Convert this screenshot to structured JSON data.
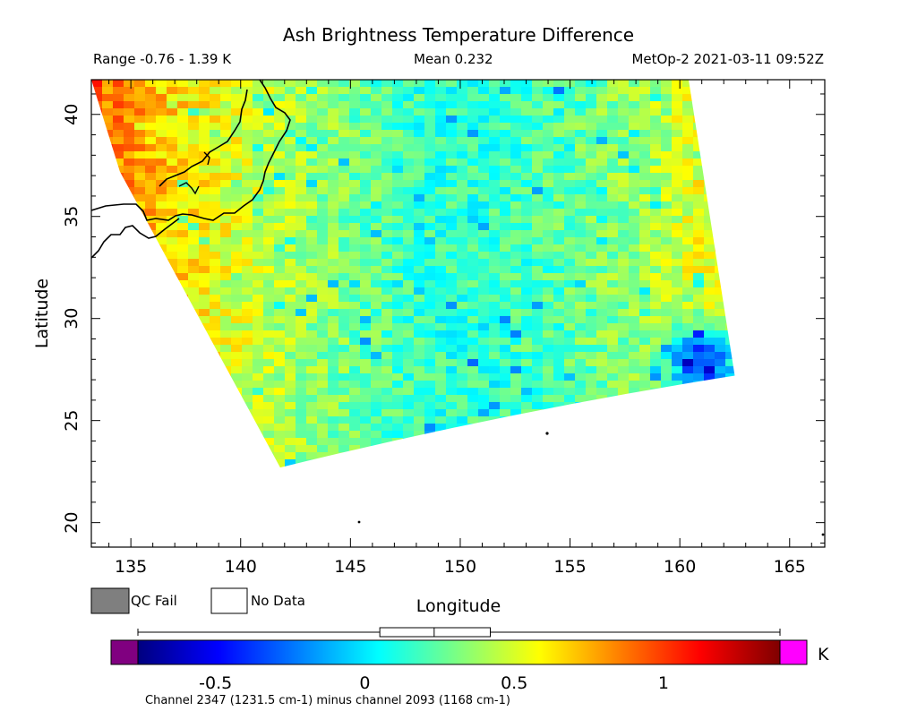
{
  "chart_data": {
    "type": "heatmap",
    "title": "Ash Brightness Temperature Difference",
    "range_text": "Range -0.76 - 1.39 K",
    "mean_text": "Mean 0.232",
    "satellite_text": "MetOp-2 2021-03-11 09:52Z",
    "xlabel": "Longitude",
    "ylabel": "Latitude",
    "xlim": [
      133.2,
      166.6
    ],
    "ylim": [
      18.8,
      41.7
    ],
    "x_ticks": [
      135,
      140,
      145,
      150,
      155,
      160,
      165
    ],
    "y_ticks": [
      20,
      25,
      30,
      35,
      40
    ],
    "swath_corners": [
      {
        "lon": 133.2,
        "lat": 41.7
      },
      {
        "lon": 160.4,
        "lat": 41.7
      },
      {
        "lon": 162.5,
        "lat": 27.2
      },
      {
        "lon": 141.8,
        "lat": 22.7
      },
      {
        "lon": 134.5,
        "lat": 37.2
      }
    ],
    "value_pattern": {
      "west_edge": 0.95,
      "center": 0.15,
      "east_edge": 0.75,
      "southeast_min": -0.4
    },
    "colorbar": {
      "unit": "K",
      "min": -0.76,
      "max": 1.39,
      "mean": 0.232,
      "ticks": [
        -0.5,
        0,
        0.5,
        1
      ],
      "tick_labels": [
        "-0.5",
        "0",
        "0.5",
        "1"
      ],
      "colors": [
        "#00007f",
        "#0000ff",
        "#007fff",
        "#00ffff",
        "#7fff7f",
        "#ffff00",
        "#ff7f00",
        "#ff0000",
        "#7f0000"
      ],
      "under_color": "#800080",
      "over_color": "#ff00ff",
      "box_whisker": {
        "min": -0.76,
        "q1": 0.05,
        "median": 0.232,
        "q3": 0.42,
        "max": 1.39
      }
    },
    "legend": [
      {
        "label": "QC Fail",
        "color": "#7f7f7f"
      },
      {
        "label": "No Data",
        "color": "#ffffff"
      }
    ],
    "footer": "Channel 2347 (1231.5 cm-1) minus channel 2093 (1168 cm-1)"
  }
}
